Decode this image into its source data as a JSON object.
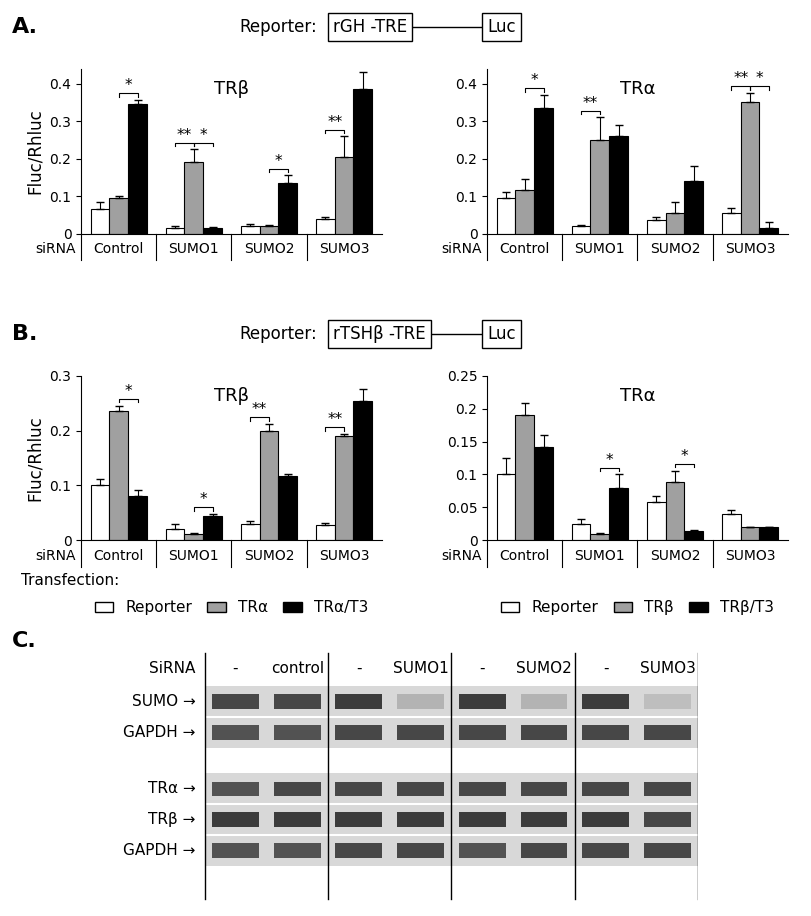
{
  "chart_data": [
    {
      "type": "bar",
      "panel": "A.",
      "title": "TRβ",
      "ylabel": "Fluc/Rhluc",
      "category_label": "siRNA",
      "categories": [
        "Control",
        "SUMO1",
        "SUMO2",
        "SUMO3"
      ],
      "ylim": [
        0,
        0.44
      ],
      "yticks": [
        0,
        0.1,
        0.2,
        0.3,
        0.4
      ],
      "series": [
        {
          "color": "#ffffff",
          "values": [
            0.065,
            0.015,
            0.02,
            0.04
          ],
          "errors": [
            0.02,
            0.005,
            0.005,
            0.005
          ]
        },
        {
          "color": "#a0a0a0",
          "values": [
            0.095,
            0.19,
            0.02,
            0.205
          ],
          "errors": [
            0.005,
            0.035,
            0.003,
            0.055
          ]
        },
        {
          "color": "#000000",
          "values": [
            0.345,
            0.015,
            0.135,
            0.385
          ],
          "errors": [
            0.012,
            0.003,
            0.02,
            0.045
          ]
        }
      ],
      "significance": [
        {
          "category": 0,
          "from": 1,
          "to": 2,
          "label": "*"
        },
        {
          "category": 1,
          "from": 0,
          "to": 1,
          "label": "**"
        },
        {
          "category": 1,
          "from": 1,
          "to": 2,
          "label": "*"
        },
        {
          "category": 2,
          "from": 1,
          "to": 2,
          "label": "*"
        },
        {
          "category": 3,
          "from": 0,
          "to": 1,
          "label": "**"
        }
      ]
    },
    {
      "type": "bar",
      "panel": "A.",
      "title": "TRα",
      "category_label": "siRNA",
      "categories": [
        "Control",
        "SUMO1",
        "SUMO2",
        "SUMO3"
      ],
      "ylim": [
        0,
        0.44
      ],
      "yticks": [
        0,
        0.1,
        0.2,
        0.3,
        0.4
      ],
      "series": [
        {
          "color": "#ffffff",
          "values": [
            0.095,
            0.02,
            0.035,
            0.055
          ],
          "errors": [
            0.015,
            0.003,
            0.008,
            0.012
          ]
        },
        {
          "color": "#a0a0a0",
          "values": [
            0.115,
            0.25,
            0.055,
            0.35
          ],
          "errors": [
            0.03,
            0.06,
            0.03,
            0.025
          ]
        },
        {
          "color": "#000000",
          "values": [
            0.335,
            0.26,
            0.14,
            0.015
          ],
          "errors": [
            0.035,
            0.03,
            0.04,
            0.015
          ]
        }
      ],
      "significance": [
        {
          "category": 0,
          "from": 1,
          "to": 2,
          "label": "*"
        },
        {
          "category": 1,
          "from": 0,
          "to": 1,
          "label": "**"
        },
        {
          "category": 3,
          "from": 0,
          "to": 1,
          "label": "**"
        },
        {
          "category": 3,
          "from": 1,
          "to": 2,
          "label": "*"
        }
      ]
    },
    {
      "type": "bar",
      "panel": "B.",
      "title": "TRβ",
      "ylabel": "Fluc/Rhluc",
      "category_label": "siRNA",
      "categories": [
        "Control",
        "SUMO1",
        "SUMO2",
        "SUMO3"
      ],
      "ylim": [
        0,
        0.3
      ],
      "yticks": [
        0,
        0.1,
        0.2,
        0.3
      ],
      "legend": "upper center",
      "series": [
        {
          "name": "Reporter",
          "color": "#ffffff",
          "values": [
            0.1,
            0.02,
            0.03,
            0.028
          ],
          "errors": [
            0.012,
            0.01,
            0.006,
            0.004
          ]
        },
        {
          "name": "TRα",
          "color": "#a0a0a0",
          "values": [
            0.235,
            0.012,
            0.2,
            0.19
          ],
          "errors": [
            0.01,
            0.002,
            0.012,
            0.004
          ]
        },
        {
          "name": "TRα/T3",
          "color": "#000000",
          "values": [
            0.08,
            0.045,
            0.118,
            0.253
          ],
          "errors": [
            0.012,
            0.003,
            0.002,
            0.022
          ]
        }
      ],
      "significance": [
        {
          "category": 0,
          "from": 1,
          "to": 2,
          "label": "*"
        },
        {
          "category": 1,
          "from": 1,
          "to": 2,
          "label": "*"
        },
        {
          "category": 2,
          "from": 0,
          "to": 1,
          "label": "**"
        },
        {
          "category": 3,
          "from": 0,
          "to": 1,
          "label": "**"
        }
      ]
    },
    {
      "type": "bar",
      "panel": "B.",
      "title": "TRα",
      "category_label": "siRNA",
      "categories": [
        "Control",
        "SUMO1",
        "SUMO2",
        "SUMO3"
      ],
      "ylim": [
        0,
        0.25
      ],
      "yticks": [
        0,
        0.05,
        0.1,
        0.15,
        0.2,
        0.25
      ],
      "legend": "upper center",
      "series": [
        {
          "name": "Reporter",
          "color": "#ffffff",
          "values": [
            0.1,
            0.025,
            0.058,
            0.04
          ],
          "errors": [
            0.025,
            0.008,
            0.01,
            0.006
          ]
        },
        {
          "name": "TRβ",
          "color": "#a0a0a0",
          "values": [
            0.19,
            0.01,
            0.088,
            0.02
          ],
          "errors": [
            0.018,
            0.002,
            0.018,
            0.001
          ]
        },
        {
          "name": "TRβ/T3",
          "color": "#000000",
          "values": [
            0.142,
            0.08,
            0.015,
            0.02
          ],
          "errors": [
            0.018,
            0.02,
            0.001,
            0.001
          ]
        }
      ],
      "significance": [
        {
          "category": 1,
          "from": 1,
          "to": 2,
          "label": "*"
        },
        {
          "category": 2,
          "from": 1,
          "to": 2,
          "label": "*"
        }
      ]
    }
  ],
  "reporters": [
    {
      "panel": "A.",
      "prefix": "Reporter:",
      "element": "rGH -TRE",
      "gene": "Luc"
    },
    {
      "panel": "B.",
      "prefix": "Reporter:",
      "element": "rTSHβ -TRE",
      "gene": "Luc"
    }
  ],
  "transfection_label": "Transfection:",
  "gel": {
    "panel": "C.",
    "header": "SiRNA",
    "lanes": [
      "-",
      "control",
      "-",
      "SUMO1",
      "-",
      "SUMO2",
      "-",
      "SUMO3"
    ],
    "blocks": [
      {
        "rows": [
          {
            "label": "SUMO →",
            "bands": [
              0.85,
              0.85,
              0.9,
              0.35,
              0.9,
              0.35,
              0.9,
              0.3
            ]
          },
          {
            "label": "GAPDH →",
            "bands": [
              0.8,
              0.8,
              0.85,
              0.85,
              0.85,
              0.85,
              0.85,
              0.85
            ]
          }
        ]
      },
      {
        "rows": [
          {
            "label": "TRα →",
            "bands": [
              0.8,
              0.85,
              0.85,
              0.85,
              0.85,
              0.85,
              0.85,
              0.85
            ]
          },
          {
            "label": "TRβ →",
            "bands": [
              0.9,
              0.9,
              0.9,
              0.9,
              0.9,
              0.9,
              0.9,
              0.85
            ]
          },
          {
            "label": "GAPDH →",
            "bands": [
              0.8,
              0.8,
              0.85,
              0.85,
              0.8,
              0.85,
              0.85,
              0.85
            ]
          }
        ]
      }
    ]
  }
}
